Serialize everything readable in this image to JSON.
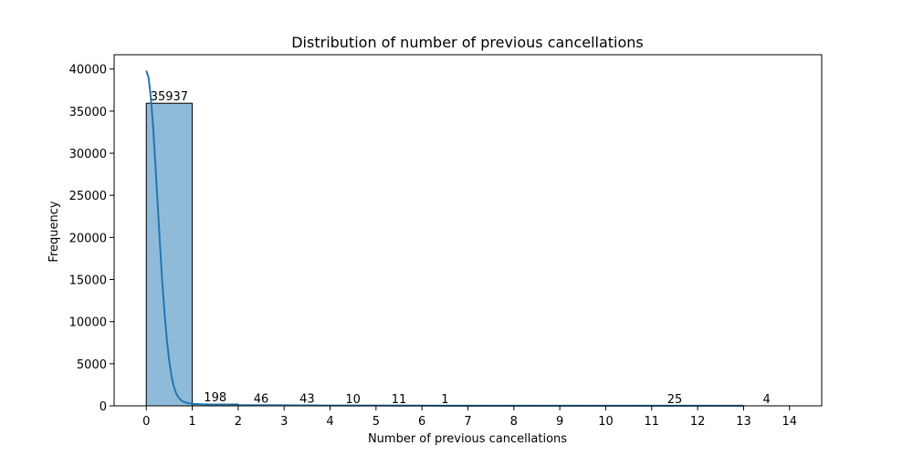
{
  "chart_data": {
    "type": "bar",
    "title": "Distribution of number of previous cancellations",
    "xlabel": "Number of previous cancellations",
    "ylabel": "Frequency",
    "xlim": [
      -0.7,
      14.7
    ],
    "ylim": [
      0,
      41700
    ],
    "xticks": [
      0,
      1,
      2,
      3,
      4,
      5,
      6,
      7,
      8,
      9,
      10,
      11,
      12,
      13,
      14
    ],
    "yticks": [
      0,
      5000,
      10000,
      15000,
      20000,
      25000,
      30000,
      35000,
      40000
    ],
    "grid": false,
    "legend": "none",
    "bin_edges": [
      0,
      1,
      2,
      3,
      4,
      5,
      6,
      7,
      8,
      9,
      10,
      11,
      12,
      13,
      14
    ],
    "values": [
      35937,
      198,
      46,
      43,
      10,
      11,
      1,
      0,
      0,
      0,
      0,
      25,
      0,
      4
    ],
    "bar_labels": [
      "35937",
      "198",
      "46",
      "43",
      "10",
      "11",
      "1",
      "",
      "",
      "",
      "",
      "25",
      "",
      "4"
    ],
    "bar_color": "#8fbbd9",
    "kde_color": "#1f77b4",
    "kde": {
      "x": [
        0,
        0.05,
        0.1,
        0.15,
        0.2,
        0.25,
        0.3,
        0.35,
        0.4,
        0.45,
        0.5,
        0.55,
        0.6,
        0.65,
        0.7,
        0.75,
        0.8,
        0.9,
        1.0,
        1.2,
        1.5,
        2,
        3,
        4,
        6,
        8,
        10,
        12,
        13
      ],
      "y": [
        39800,
        39000,
        36500,
        33000,
        28500,
        23800,
        19000,
        14600,
        10800,
        7700,
        5300,
        3500,
        2300,
        1500,
        1000,
        700,
        500,
        330,
        250,
        180,
        130,
        90,
        60,
        40,
        20,
        10,
        10,
        10,
        10
      ]
    }
  }
}
